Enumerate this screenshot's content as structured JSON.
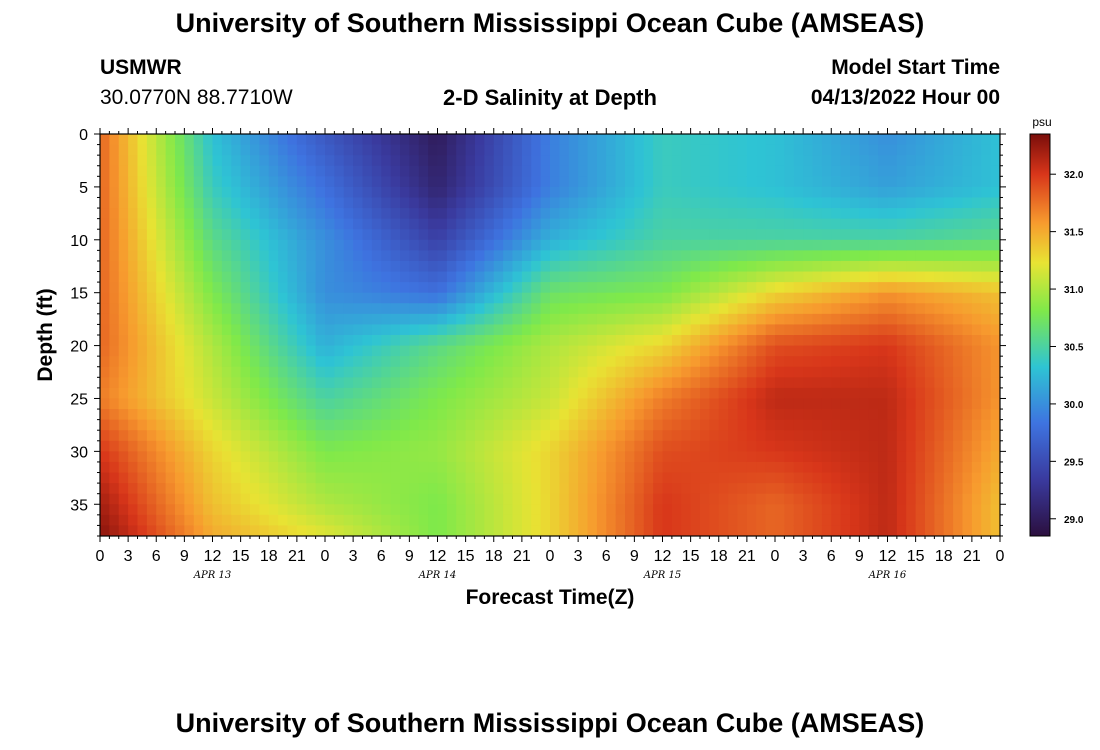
{
  "header": {
    "title": "University of Southern Mississippi Ocean Cube (AMSEAS)",
    "station": "USMWR",
    "coords": "30.0770N  88.7710W",
    "plot_title": "2-D Salinity at Depth",
    "start_label": "Model Start Time",
    "start_value": "04/13/2022 Hour 00",
    "footer_title": "University of Southern Mississippi Ocean Cube (AMSEAS)"
  },
  "chart_data": {
    "type": "heatmap",
    "title": "2-D Salinity at Depth",
    "xlabel": "Forecast Time(Z)",
    "ylabel": "Depth (ft)",
    "x_hours_range": [
      0,
      96
    ],
    "y_range_ft": [
      0,
      38
    ],
    "x_tick_labels": [
      "0",
      "3",
      "6",
      "9",
      "12",
      "15",
      "18",
      "21",
      "0",
      "3",
      "6",
      "9",
      "12",
      "15",
      "18",
      "21",
      "0",
      "3",
      "6",
      "9",
      "12",
      "15",
      "18",
      "21",
      "0",
      "3",
      "6",
      "9",
      "12",
      "15",
      "18",
      "21",
      "0"
    ],
    "date_labels": [
      "APR 13",
      "APR 14",
      "APR 15",
      "APR 16"
    ],
    "y_tick_labels": [
      "0",
      "5",
      "10",
      "15",
      "20",
      "25",
      "30",
      "35"
    ],
    "colorbar": {
      "unit": "psu",
      "range": [
        28.85,
        32.35
      ],
      "ticks": [
        "32.0",
        "31.5",
        "31.0",
        "30.5",
        "30.0",
        "29.5",
        "29.0"
      ]
    },
    "grid": {
      "x_hours": [
        0,
        12,
        24,
        36,
        48,
        60,
        72,
        84,
        96
      ],
      "depths_ft": [
        0,
        5,
        10,
        15,
        20,
        25,
        30,
        35,
        38
      ],
      "salinity_psu": [
        [
          31.8,
          30.3,
          29.6,
          29.0,
          29.9,
          30.4,
          30.3,
          30.0,
          30.3
        ],
        [
          31.8,
          30.4,
          29.8,
          29.1,
          29.9,
          30.4,
          30.3,
          30.1,
          30.3
        ],
        [
          31.8,
          30.6,
          30.0,
          29.4,
          30.2,
          30.5,
          30.5,
          30.5,
          30.6
        ],
        [
          31.8,
          30.8,
          30.0,
          29.8,
          30.7,
          30.8,
          31.3,
          31.6,
          31.4
        ],
        [
          31.8,
          31.0,
          30.2,
          30.6,
          31.0,
          31.3,
          31.9,
          32.0,
          31.6
        ],
        [
          31.7,
          31.1,
          30.5,
          30.8,
          31.1,
          31.7,
          32.1,
          32.1,
          31.6
        ],
        [
          32.0,
          31.3,
          30.8,
          30.9,
          31.3,
          31.9,
          32.0,
          32.1,
          31.5
        ],
        [
          32.2,
          31.4,
          31.0,
          30.8,
          31.3,
          32.0,
          31.8,
          32.1,
          31.4
        ],
        [
          32.3,
          31.5,
          31.2,
          30.8,
          31.3,
          32.0,
          31.8,
          32.1,
          31.4
        ]
      ]
    }
  }
}
